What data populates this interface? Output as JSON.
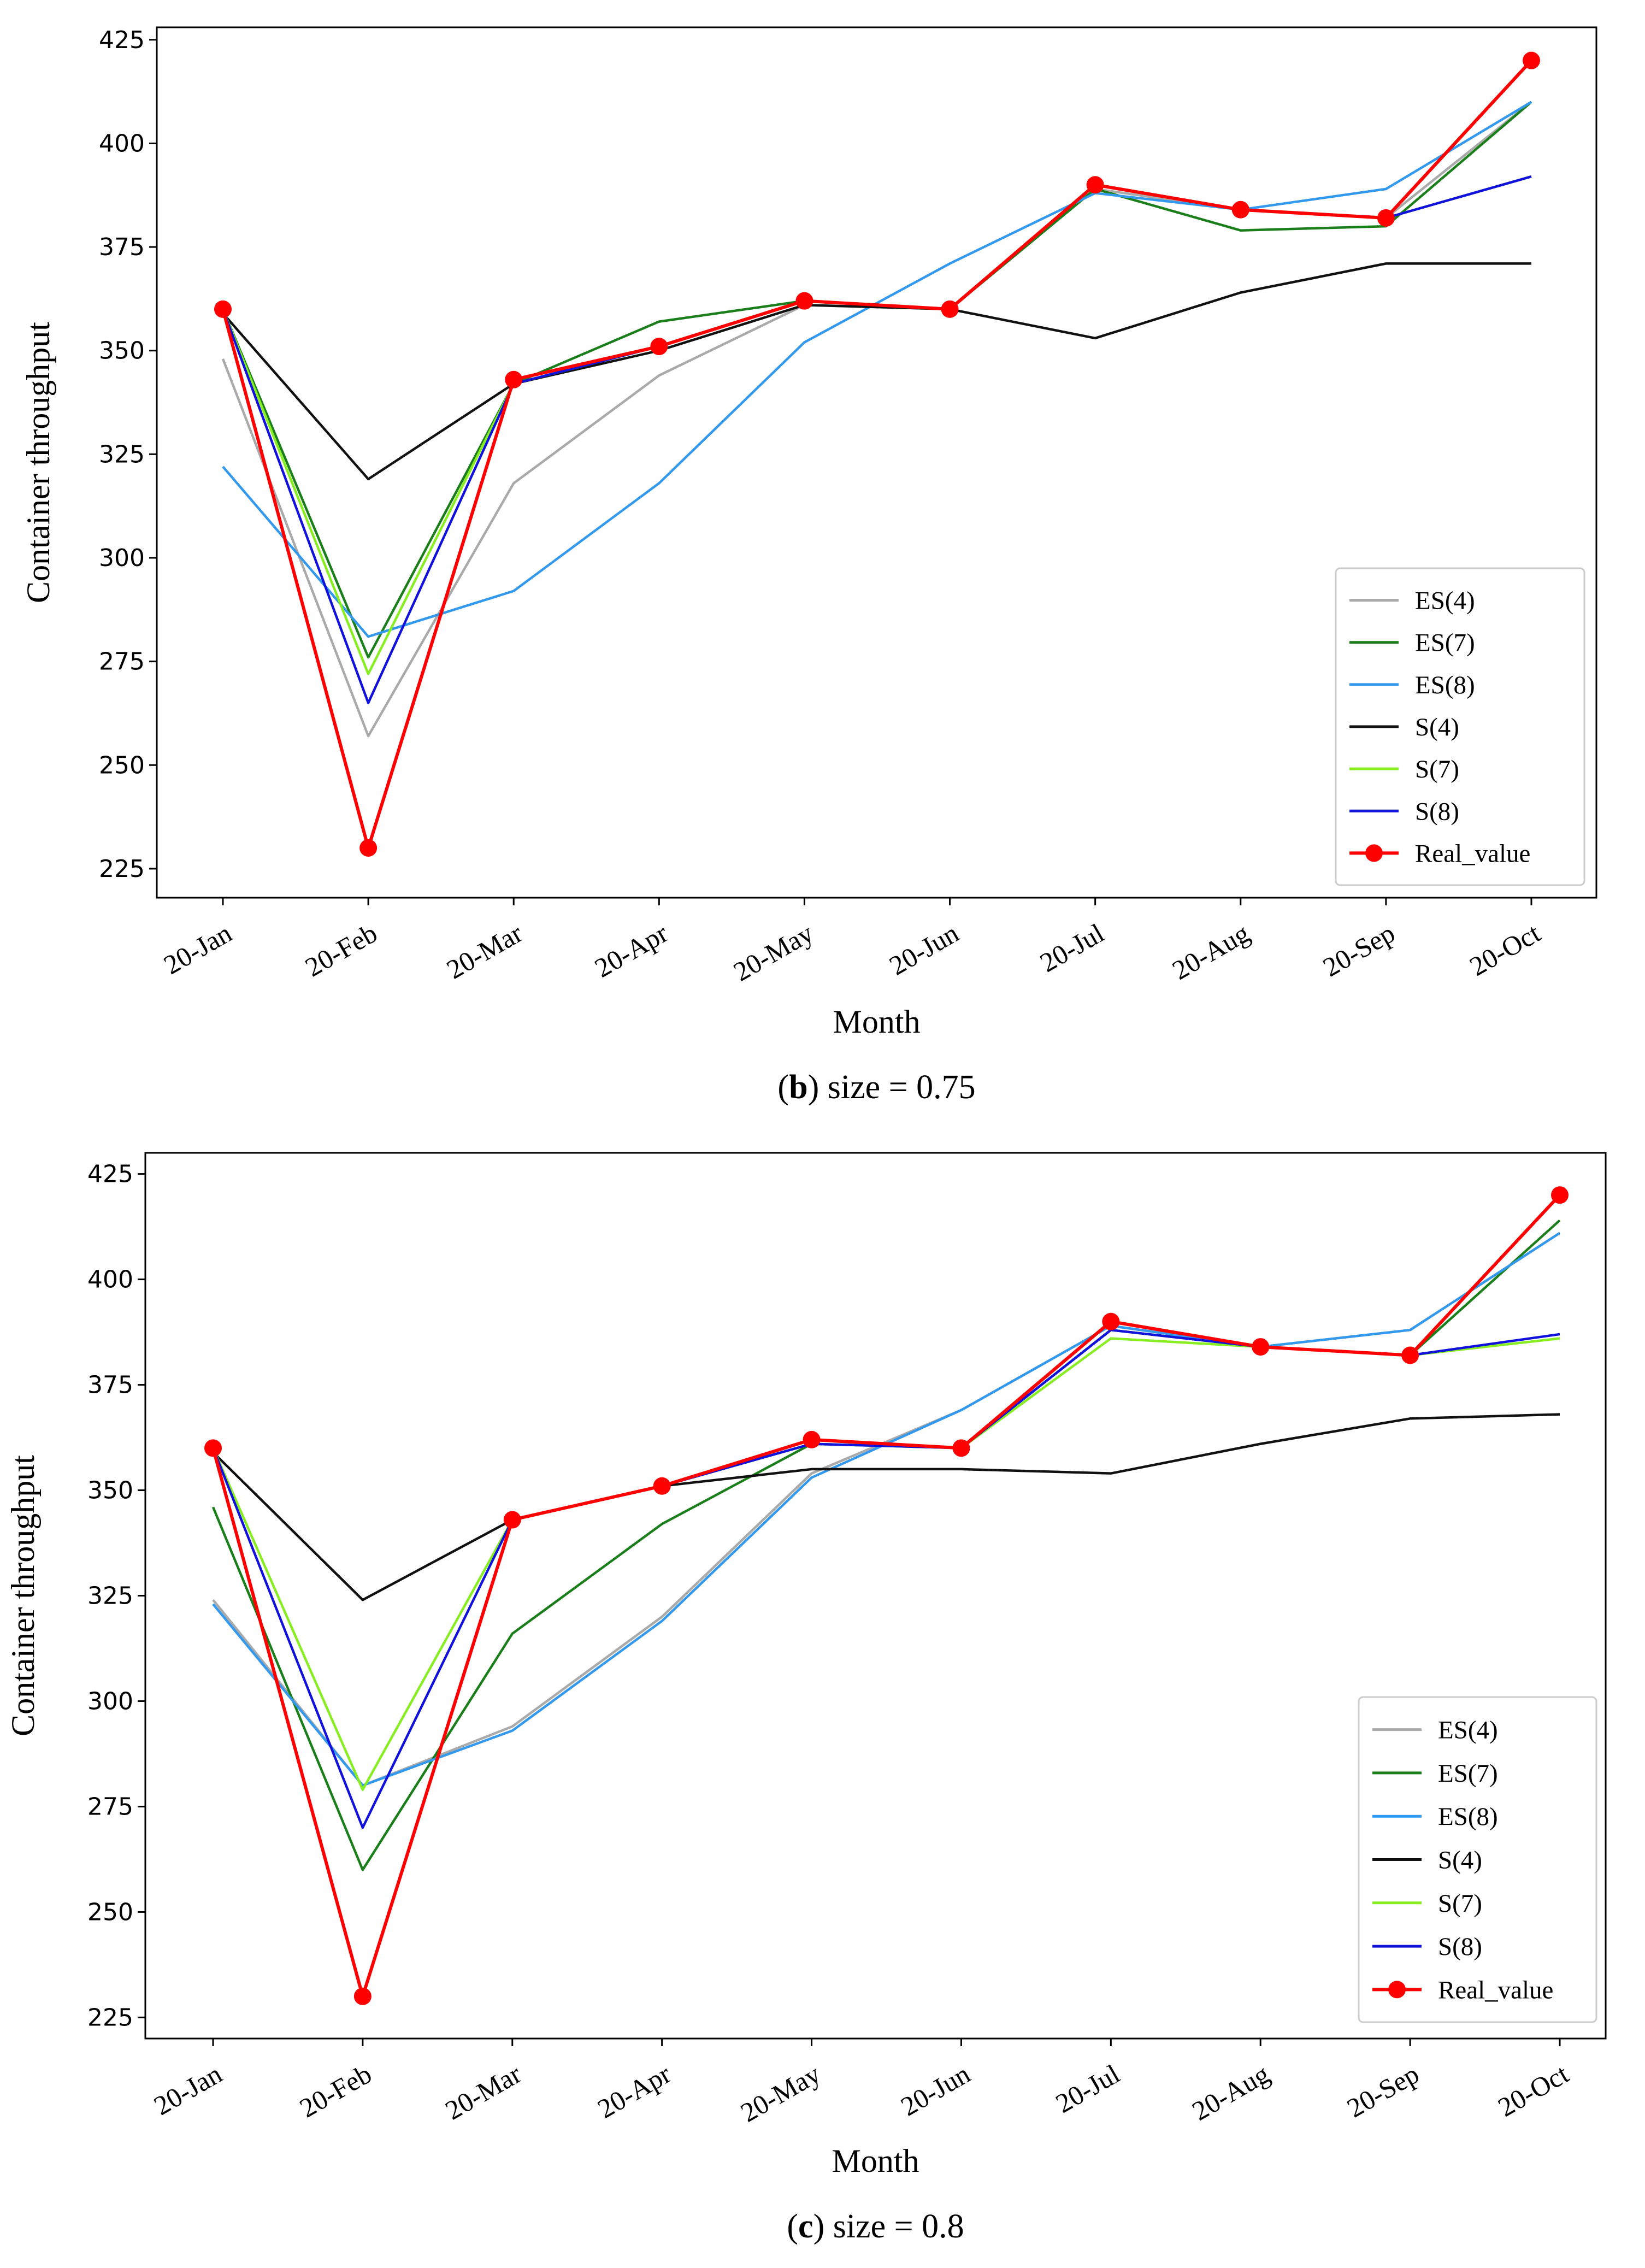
{
  "chart_data": [
    {
      "type": "line",
      "caption_letter": "b",
      "caption_text": ") size = 0.75",
      "caption_open": "(",
      "xlabel": "Month",
      "ylabel": "Container throughput",
      "ylim": [
        218,
        428
      ],
      "yticks": [
        225,
        250,
        275,
        300,
        325,
        350,
        375,
        400,
        425
      ],
      "categories": [
        "20-Jan",
        "20-Feb",
        "20-Mar",
        "20-Apr",
        "20-May",
        "20-Jun",
        "20-Jul",
        "20-Aug",
        "20-Sep",
        "20-Oct"
      ],
      "legend_position": "lower-right",
      "series": [
        {
          "name": "ES(4)",
          "color": "#aaaaaa",
          "values": [
            348,
            257,
            318,
            344,
            361,
            360,
            389,
            384,
            382,
            410
          ]
        },
        {
          "name": "ES(7)",
          "color": "#1a7f1a",
          "values": [
            360,
            276,
            342,
            357,
            362,
            360,
            389,
            379,
            380,
            410
          ]
        },
        {
          "name": "ES(8)",
          "color": "#3399ee",
          "values": [
            322,
            281,
            292,
            318,
            352,
            371,
            388,
            384,
            389,
            410
          ]
        },
        {
          "name": "S(4)",
          "color": "#111111",
          "values": [
            359,
            319,
            342,
            350,
            361,
            360,
            353,
            364,
            371,
            371
          ]
        },
        {
          "name": "S(7)",
          "color": "#88ee22",
          "values": [
            360,
            272,
            342,
            351,
            362,
            360,
            390,
            384,
            382,
            392
          ]
        },
        {
          "name": "S(8)",
          "color": "#1111dd",
          "values": [
            360,
            265,
            342,
            351,
            362,
            360,
            390,
            384,
            382,
            392
          ]
        },
        {
          "name": "Real_value",
          "color": "#ff0000",
          "marker": true,
          "values": [
            360,
            230,
            343,
            351,
            362,
            360,
            390,
            384,
            382,
            420
          ]
        }
      ]
    },
    {
      "type": "line",
      "caption_letter": "c",
      "caption_text": ") size = 0.8",
      "caption_open": "(",
      "xlabel": "Month",
      "ylabel": "Container throughput",
      "ylim": [
        220,
        430
      ],
      "yticks": [
        225,
        250,
        275,
        300,
        325,
        350,
        375,
        400,
        425
      ],
      "categories": [
        "20-Jan",
        "20-Feb",
        "20-Mar",
        "20-Apr",
        "20-May",
        "20-Jun",
        "20-Jul",
        "20-Aug",
        "20-Sep",
        "20-Oct"
      ],
      "legend_position": "lower-right",
      "series": [
        {
          "name": "ES(4)",
          "color": "#aaaaaa",
          "values": [
            324,
            280,
            294,
            320,
            354,
            369,
            389,
            384,
            388,
            411
          ]
        },
        {
          "name": "ES(7)",
          "color": "#1a7f1a",
          "values": [
            346,
            260,
            316,
            342,
            361,
            360,
            388,
            384,
            382,
            414
          ]
        },
        {
          "name": "ES(8)",
          "color": "#3399ee",
          "values": [
            323,
            280,
            293,
            319,
            353,
            369,
            389,
            384,
            388,
            411
          ]
        },
        {
          "name": "S(4)",
          "color": "#111111",
          "values": [
            359,
            324,
            343,
            351,
            355,
            355,
            354,
            361,
            367,
            368
          ]
        },
        {
          "name": "S(7)",
          "color": "#88ee22",
          "values": [
            360,
            279,
            343,
            351,
            361,
            360,
            386,
            384,
            382,
            386
          ]
        },
        {
          "name": "S(8)",
          "color": "#1111dd",
          "values": [
            360,
            270,
            343,
            351,
            361,
            360,
            388,
            384,
            382,
            387
          ]
        },
        {
          "name": "Real_value",
          "color": "#ff0000",
          "marker": true,
          "values": [
            360,
            230,
            343,
            351,
            362,
            360,
            390,
            384,
            382,
            420
          ]
        }
      ]
    }
  ]
}
